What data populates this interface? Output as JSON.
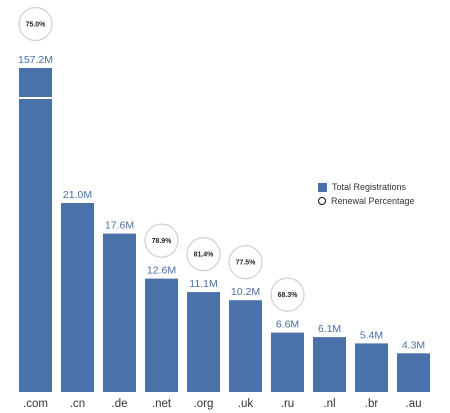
{
  "chart_data": {
    "type": "bar",
    "categories": [
      ".com",
      ".cn",
      ".de",
      ".net",
      ".org",
      ".uk",
      ".ru",
      ".nl",
      ".br",
      ".au"
    ],
    "series": [
      {
        "name": "Total Registrations",
        "values": [
          157.2,
          21.0,
          17.6,
          12.6,
          11.1,
          10.2,
          6.6,
          6.1,
          5.4,
          4.3
        ],
        "value_labels": [
          "157.2M",
          "21.0M",
          "17.6M",
          "12.6M",
          "11.1M",
          "10.2M",
          "6.6M",
          "6.1M",
          "5.4M",
          "4.3M"
        ],
        "color": "#4a72a8",
        "axis_break": true
      },
      {
        "name": "Renewal Percentage",
        "values": [
          75.0,
          null,
          null,
          78.9,
          81.4,
          77.5,
          68.3,
          null,
          null,
          null
        ],
        "value_labels": [
          "75.0%",
          null,
          null,
          "78.9%",
          "81.4%",
          "77.5%",
          "68.3%",
          null,
          null,
          null
        ]
      }
    ],
    "legend_position": "right",
    "grid": false
  }
}
